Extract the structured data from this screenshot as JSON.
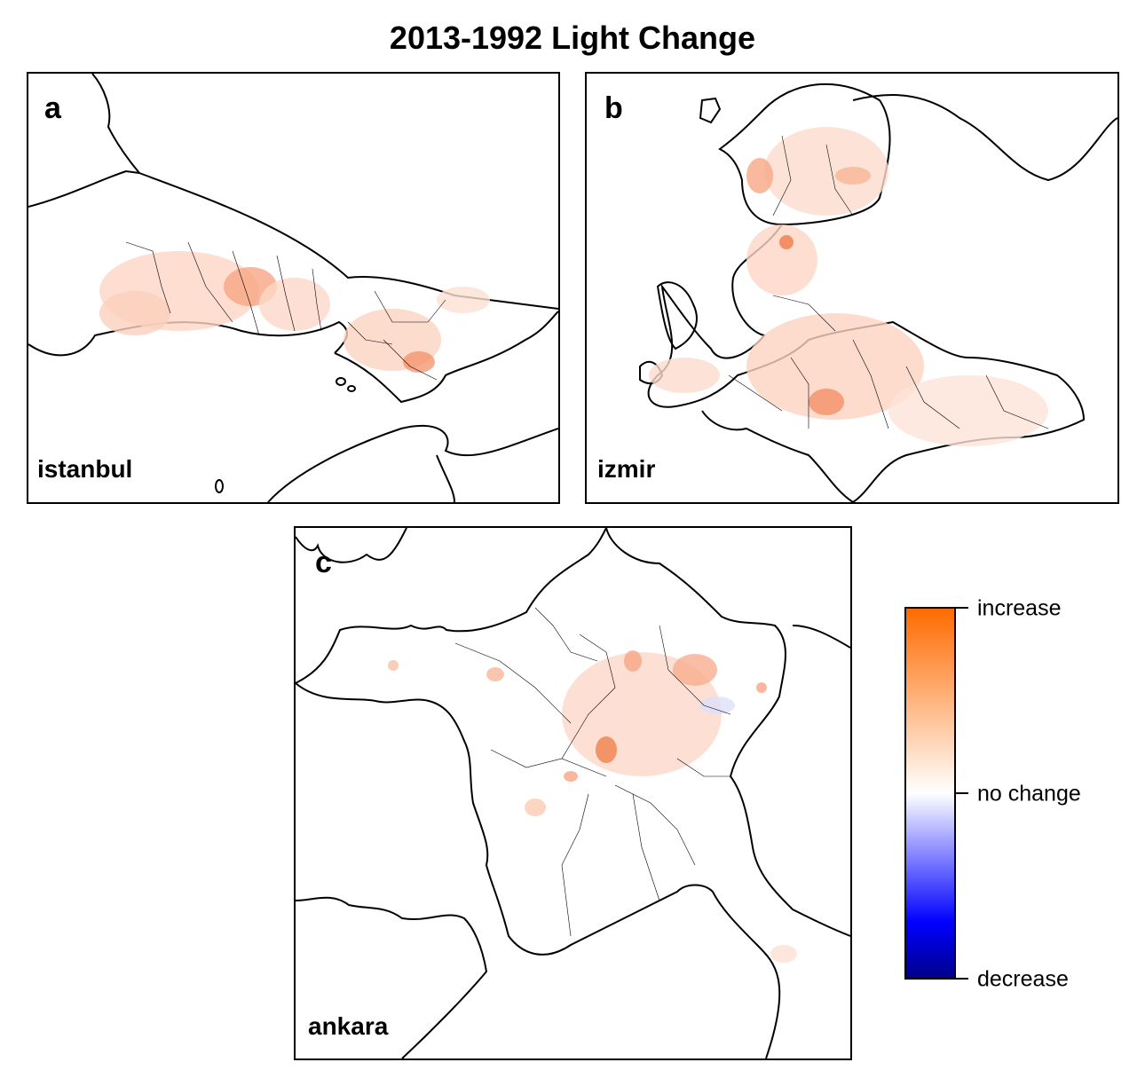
{
  "title": "2013-1992 Light Change",
  "panels": [
    {
      "letter": "a",
      "city": "istanbul"
    },
    {
      "letter": "b",
      "city": "izmir"
    },
    {
      "letter": "c",
      "city": "ankara"
    }
  ],
  "colorbar": {
    "labels": {
      "top": "increase",
      "middle": "no change",
      "bottom": "decrease"
    },
    "colors": {
      "top": "#ff6a00",
      "middle": "#ffffff",
      "bottom": "#00008b"
    }
  }
}
